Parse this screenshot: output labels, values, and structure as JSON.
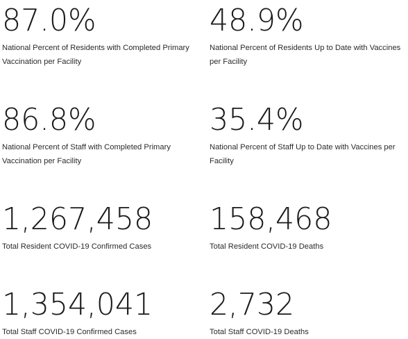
{
  "stats": [
    {
      "value": "87.0%",
      "label": "National Percent of Residents with Completed Primary Vaccination per Facility"
    },
    {
      "value": "48.9%",
      "label": "National Percent of Residents Up to Date with Vaccines per Facility"
    },
    {
      "value": "86.8%",
      "label": "National Percent of Staff with Completed Primary Vaccination per Facility"
    },
    {
      "value": "35.4%",
      "label": "National Percent of Staff Up to Date with Vaccines per Facility"
    },
    {
      "value": "1,267,458",
      "label": "Total Resident COVID-19 Confirmed Cases"
    },
    {
      "value": "158,468",
      "label": "Total Resident COVID-19 Deaths"
    },
    {
      "value": "1,354,041",
      "label": "Total Staff COVID-19 Confirmed Cases"
    },
    {
      "value": "2,732",
      "label": "Total Staff COVID-19 Deaths"
    }
  ]
}
